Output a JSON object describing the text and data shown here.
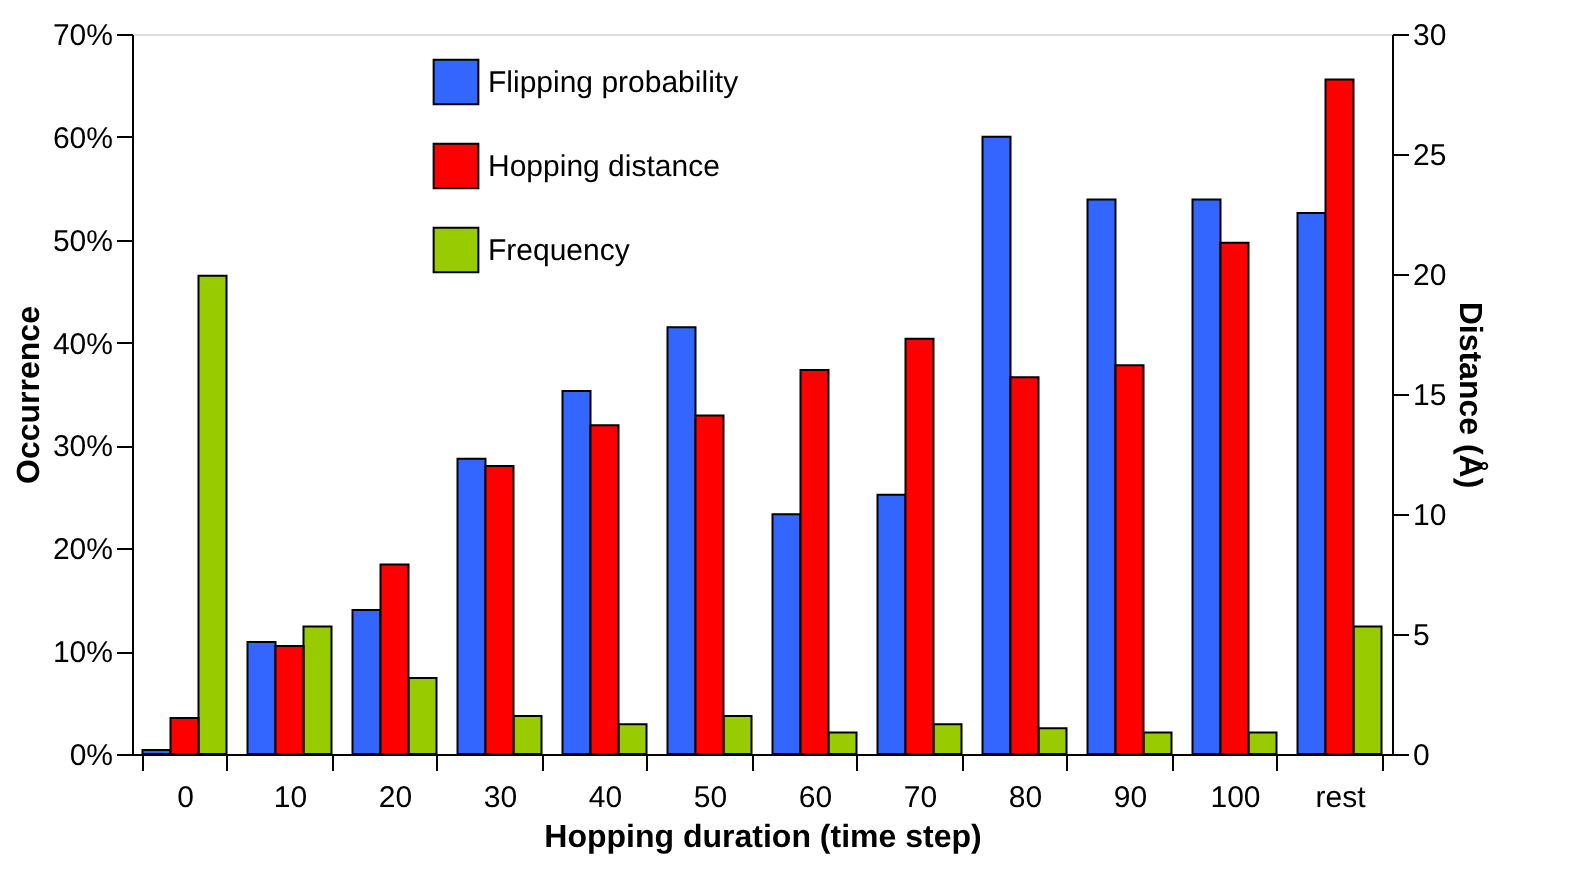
{
  "chart_data": {
    "type": "bar",
    "xlabel": "Hopping duration (time step)",
    "ylabel": "Occurrence",
    "y2label": "Distance  (Å)",
    "categories": [
      "0",
      "10",
      "20",
      "30",
      "40",
      "50",
      "60",
      "70",
      "80",
      "90",
      "100",
      "rest"
    ],
    "series": [
      {
        "name": "Flipping probability",
        "color": "#3366ff",
        "values": [
          0.4,
          10.9,
          14,
          28.7,
          35.3,
          41.5,
          23.3,
          25.2,
          60,
          53.9,
          53.9,
          52.6
        ]
      },
      {
        "name": "Hopping distance",
        "color": "#ff0000",
        "axis": "y2",
        "values": [
          1.5,
          4.5,
          7.9,
          12.0,
          13.7,
          14.1,
          16.0,
          17.3,
          15.7,
          16.2,
          21.3,
          28.1
        ]
      },
      {
        "name": "Frequency",
        "color": "#99cc00",
        "values": [
          46.5,
          12.4,
          7.4,
          3.7,
          2.9,
          3.7,
          2.1,
          2.9,
          2.5,
          2.1,
          2.1,
          12.4
        ]
      }
    ],
    "ylim": [
      0,
      70
    ],
    "yticks": [
      {
        "value": 0,
        "label": "0%"
      },
      {
        "value": 10,
        "label": "10%"
      },
      {
        "value": 20,
        "label": "20%"
      },
      {
        "value": 30,
        "label": "30%"
      },
      {
        "value": 40,
        "label": "40%"
      },
      {
        "value": 50,
        "label": "50%"
      },
      {
        "value": 60,
        "label": "60%"
      },
      {
        "value": 70,
        "label": "70%"
      }
    ],
    "y2lim": [
      0,
      30
    ],
    "y2ticks": [
      0,
      5,
      10,
      15,
      20,
      25,
      30
    ],
    "grid": false,
    "legend": "top left"
  }
}
